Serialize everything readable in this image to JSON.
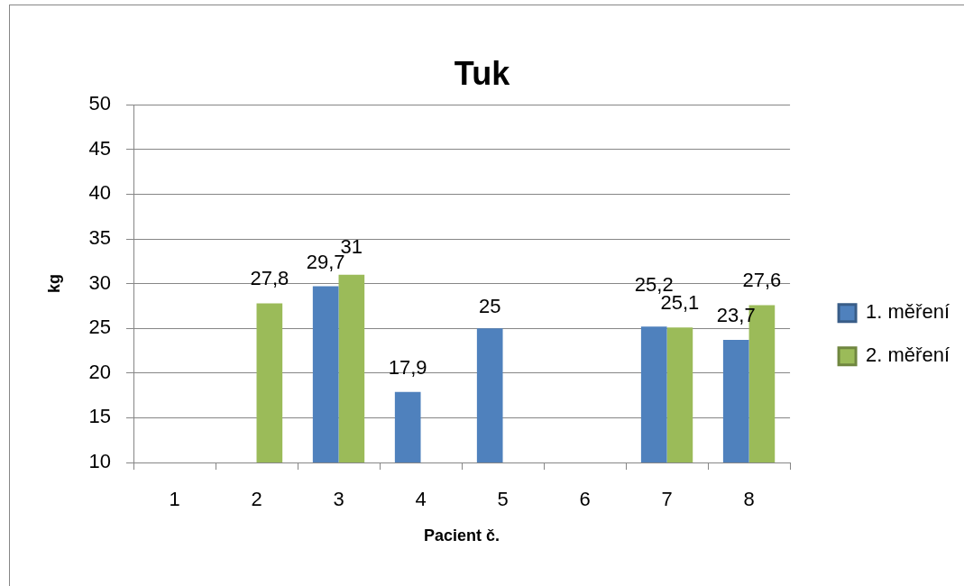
{
  "chart_data": {
    "type": "bar",
    "title": "Tuk",
    "xlabel": "Pacient č.",
    "ylabel": "kg",
    "categories": [
      "1",
      "2",
      "3",
      "4",
      "5",
      "6",
      "7",
      "8"
    ],
    "series": [
      {
        "name": "1. měření",
        "color": "#4f81bd",
        "values": [
          null,
          null,
          29.7,
          17.9,
          25,
          null,
          25.2,
          23.7
        ],
        "value_labels": [
          null,
          null,
          "29,7",
          "17,9",
          "25",
          null,
          "25,2",
          "23,7"
        ]
      },
      {
        "name": "2. měření",
        "color": "#9bbb59",
        "values": [
          null,
          27.8,
          31,
          null,
          null,
          null,
          25.1,
          27.6
        ],
        "value_labels": [
          null,
          "27,8",
          "31",
          null,
          null,
          null,
          "25,1",
          "27,6"
        ]
      }
    ],
    "ylim": [
      10,
      50
    ],
    "yticks": [
      10,
      15,
      20,
      25,
      30,
      35,
      40,
      45,
      50
    ],
    "grid": "y",
    "legend": "right"
  }
}
